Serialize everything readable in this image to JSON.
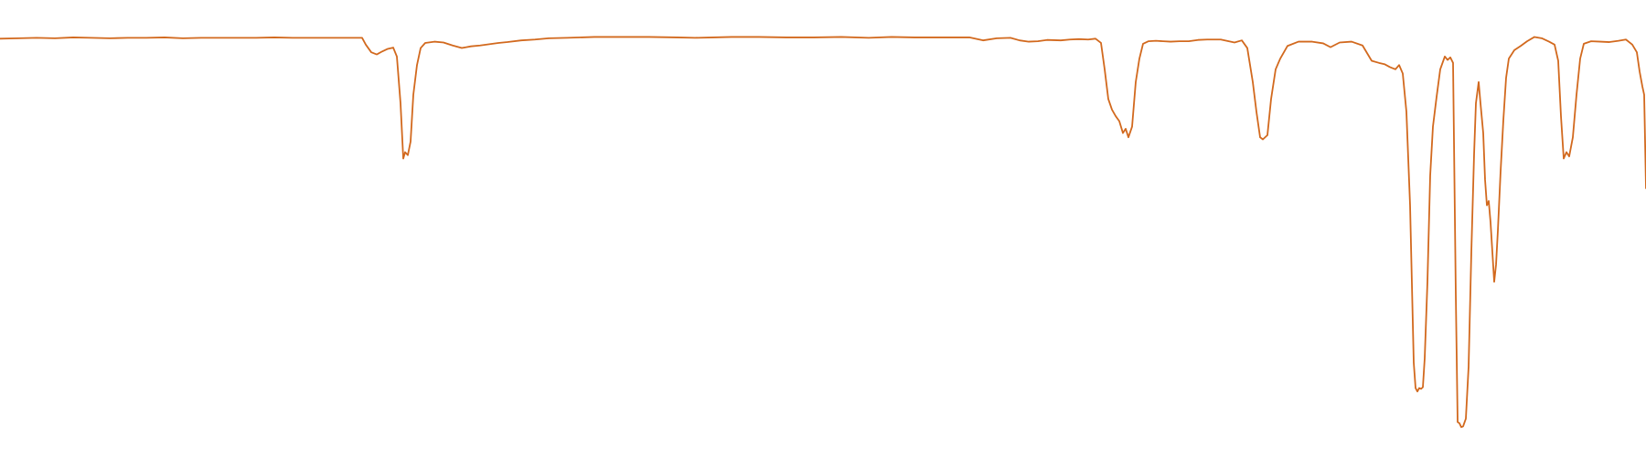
{
  "chart_data": {
    "type": "line",
    "title": "",
    "xlabel": "",
    "ylabel": "",
    "xlim": [
      0,
      1800
    ],
    "ylim": [
      0,
      100
    ],
    "grid": false,
    "legend": "none",
    "series": [
      {
        "color": "#d2691e",
        "points": [
          [
            0,
            95.2
          ],
          [
            20,
            95.3
          ],
          [
            40,
            95.4
          ],
          [
            60,
            95.3
          ],
          [
            80,
            95.5
          ],
          [
            100,
            95.4
          ],
          [
            120,
            95.3
          ],
          [
            140,
            95.4
          ],
          [
            160,
            95.4
          ],
          [
            180,
            95.5
          ],
          [
            200,
            95.3
          ],
          [
            220,
            95.4
          ],
          [
            240,
            95.4
          ],
          [
            260,
            95.4
          ],
          [
            280,
            95.4
          ],
          [
            300,
            95.5
          ],
          [
            320,
            95.4
          ],
          [
            340,
            95.4
          ],
          [
            360,
            95.4
          ],
          [
            380,
            95.4
          ],
          [
            396,
            95.4
          ],
          [
            400,
            93.8
          ],
          [
            406,
            92.0
          ],
          [
            412,
            91.5
          ],
          [
            418,
            92.2
          ],
          [
            424,
            92.8
          ],
          [
            430,
            93.1
          ],
          [
            434,
            91.0
          ],
          [
            438,
            80.0
          ],
          [
            441,
            67.0
          ],
          [
            443,
            68.5
          ],
          [
            446,
            67.8
          ],
          [
            449,
            71.0
          ],
          [
            452,
            82.0
          ],
          [
            456,
            89.0
          ],
          [
            460,
            93.0
          ],
          [
            465,
            94.2
          ],
          [
            475,
            94.5
          ],
          [
            485,
            94.3
          ],
          [
            495,
            93.6
          ],
          [
            505,
            93.0
          ],
          [
            515,
            93.4
          ],
          [
            525,
            93.6
          ],
          [
            535,
            93.9
          ],
          [
            545,
            94.2
          ],
          [
            555,
            94.4
          ],
          [
            570,
            94.8
          ],
          [
            585,
            95.0
          ],
          [
            600,
            95.3
          ],
          [
            620,
            95.4
          ],
          [
            650,
            95.6
          ],
          [
            680,
            95.6
          ],
          [
            710,
            95.6
          ],
          [
            740,
            95.5
          ],
          [
            760,
            95.4
          ],
          [
            780,
            95.5
          ],
          [
            800,
            95.6
          ],
          [
            830,
            95.6
          ],
          [
            860,
            95.5
          ],
          [
            890,
            95.5
          ],
          [
            920,
            95.6
          ],
          [
            950,
            95.4
          ],
          [
            975,
            95.6
          ],
          [
            1000,
            95.5
          ],
          [
            1020,
            95.5
          ],
          [
            1040,
            95.5
          ],
          [
            1060,
            95.5
          ],
          [
            1075,
            94.8
          ],
          [
            1090,
            95.3
          ],
          [
            1105,
            95.4
          ],
          [
            1115,
            94.8
          ],
          [
            1125,
            94.5
          ],
          [
            1135,
            94.6
          ],
          [
            1145,
            94.9
          ],
          [
            1160,
            94.8
          ],
          [
            1170,
            95.0
          ],
          [
            1180,
            95.1
          ],
          [
            1190,
            95.0
          ],
          [
            1198,
            95.2
          ],
          [
            1204,
            94.2
          ],
          [
            1208,
            88.0
          ],
          [
            1212,
            81.0
          ],
          [
            1216,
            78.5
          ],
          [
            1220,
            77.0
          ],
          [
            1224,
            75.8
          ],
          [
            1228,
            73.0
          ],
          [
            1231,
            74.0
          ],
          [
            1234,
            72.0
          ],
          [
            1238,
            74.5
          ],
          [
            1242,
            85.0
          ],
          [
            1246,
            90.5
          ],
          [
            1250,
            94.0
          ],
          [
            1256,
            94.6
          ],
          [
            1264,
            94.7
          ],
          [
            1272,
            94.6
          ],
          [
            1280,
            94.5
          ],
          [
            1290,
            94.6
          ],
          [
            1300,
            94.6
          ],
          [
            1310,
            94.9
          ],
          [
            1320,
            95.0
          ],
          [
            1335,
            95.0
          ],
          [
            1350,
            94.3
          ],
          [
            1358,
            94.8
          ],
          [
            1364,
            93.0
          ],
          [
            1370,
            85.0
          ],
          [
            1374,
            78.0
          ],
          [
            1378,
            72.0
          ],
          [
            1381,
            71.5
          ],
          [
            1386,
            72.5
          ],
          [
            1390,
            81.0
          ],
          [
            1395,
            88.0
          ],
          [
            1400,
            90.5
          ],
          [
            1408,
            93.5
          ],
          [
            1420,
            94.5
          ],
          [
            1435,
            94.5
          ],
          [
            1447,
            94.1
          ],
          [
            1455,
            93.2
          ],
          [
            1465,
            94.3
          ],
          [
            1478,
            94.5
          ],
          [
            1490,
            93.6
          ],
          [
            1500,
            90.0
          ],
          [
            1508,
            89.5
          ],
          [
            1514,
            89.2
          ],
          [
            1520,
            88.5
          ],
          [
            1526,
            88.0
          ],
          [
            1530,
            89.0
          ],
          [
            1534,
            87.0
          ],
          [
            1538,
            78.0
          ],
          [
            1542,
            56.0
          ],
          [
            1546,
            19.0
          ],
          [
            1548,
            13.0
          ],
          [
            1550,
            12.2
          ],
          [
            1552,
            13.0
          ],
          [
            1554,
            12.8
          ],
          [
            1556,
            13.2
          ],
          [
            1558,
            20.0
          ],
          [
            1561,
            38.0
          ],
          [
            1564,
            63.0
          ],
          [
            1567,
            74.5
          ],
          [
            1571,
            81.5
          ],
          [
            1575,
            88.0
          ],
          [
            1580,
            91.0
          ],
          [
            1583,
            90.2
          ],
          [
            1586,
            90.8
          ],
          [
            1589,
            89.5
          ],
          [
            1592,
            35.0
          ],
          [
            1594,
            5.0
          ],
          [
            1596,
            4.7
          ],
          [
            1598,
            3.8
          ],
          [
            1600,
            4.0
          ],
          [
            1603,
            5.8
          ],
          [
            1606,
            18.0
          ],
          [
            1609,
            45.0
          ],
          [
            1612,
            68.0
          ],
          [
            1614,
            80.0
          ],
          [
            1617,
            85.0
          ],
          [
            1619,
            80.0
          ],
          [
            1622,
            73.0
          ],
          [
            1624,
            62.0
          ],
          [
            1626,
            56.0
          ],
          [
            1628,
            57.0
          ],
          [
            1630,
            52.0
          ],
          [
            1632,
            45.0
          ],
          [
            1634,
            38.0
          ],
          [
            1636,
            42.0
          ],
          [
            1638,
            50.0
          ],
          [
            1641,
            64.0
          ],
          [
            1644,
            76.0
          ],
          [
            1647,
            86.0
          ],
          [
            1650,
            90.5
          ],
          [
            1656,
            92.5
          ],
          [
            1663,
            93.5
          ],
          [
            1670,
            94.6
          ],
          [
            1678,
            95.6
          ],
          [
            1686,
            95.3
          ],
          [
            1694,
            94.5
          ],
          [
            1700,
            93.8
          ],
          [
            1704,
            90.0
          ],
          [
            1707,
            77.0
          ],
          [
            1710,
            67.0
          ],
          [
            1713,
            68.5
          ],
          [
            1716,
            67.5
          ],
          [
            1720,
            72.0
          ],
          [
            1724,
            82.0
          ],
          [
            1728,
            90.5
          ],
          [
            1732,
            94.0
          ],
          [
            1740,
            94.6
          ],
          [
            1750,
            94.5
          ],
          [
            1760,
            94.4
          ],
          [
            1770,
            94.7
          ],
          [
            1778,
            95.0
          ],
          [
            1785,
            93.8
          ],
          [
            1790,
            92.0
          ],
          [
            1793,
            87.5
          ],
          [
            1796,
            84.0
          ],
          [
            1798,
            82.0
          ],
          [
            1800,
            60.0
          ]
        ]
      }
    ]
  }
}
